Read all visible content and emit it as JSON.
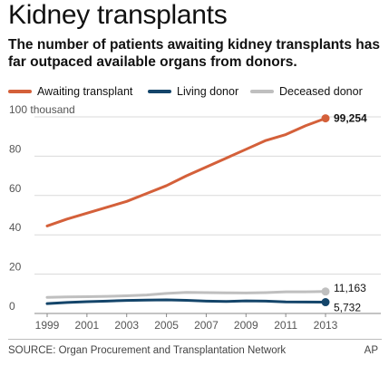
{
  "title": "Kidney transplants",
  "subtitle": "The number of patients awaiting kidney transplants has far outpaced available organs from donors.",
  "source": "SOURCE: Organ Procurement and Transplantation Network",
  "credit": "AP",
  "colors": {
    "awaiting": "#d4603a",
    "living": "#14456a",
    "deceased": "#bfbfbf",
    "grid": "#d9d9d9",
    "axis": "#555555"
  },
  "chart_data": {
    "type": "line",
    "x": [
      1999,
      2000,
      2001,
      2002,
      2003,
      2004,
      2005,
      2006,
      2007,
      2008,
      2009,
      2010,
      2011,
      2012,
      2013
    ],
    "xticks": [
      "1999",
      "2001",
      "2003",
      "2005",
      "2007",
      "2009",
      "2011",
      "2013"
    ],
    "yticks": [
      "100 thousand",
      "80",
      "60",
      "40",
      "20",
      "0"
    ],
    "ylim": [
      0,
      100
    ],
    "legend": "top",
    "grid": true,
    "series": [
      {
        "name": "Awaiting transplant",
        "color": "#d4603a",
        "values": [
          44.5,
          48,
          51,
          54,
          57,
          61,
          65,
          70,
          74.5,
          79,
          83.5,
          88,
          91,
          95.5,
          99.254
        ],
        "end_label": "99,254"
      },
      {
        "name": "Living donor",
        "color": "#14456a",
        "values": [
          5.0,
          5.6,
          6.0,
          6.3,
          6.6,
          6.8,
          6.9,
          6.7,
          6.3,
          6.1,
          6.4,
          6.3,
          5.9,
          5.8,
          5.732
        ],
        "end_label": "5,732"
      },
      {
        "name": "Deceased donor",
        "color": "#bfbfbf",
        "values": [
          8.2,
          8.4,
          8.5,
          8.7,
          9.0,
          9.4,
          10.2,
          10.7,
          10.6,
          10.5,
          10.4,
          10.6,
          11.0,
          11.0,
          11.163
        ],
        "end_label": "11,163"
      }
    ]
  }
}
